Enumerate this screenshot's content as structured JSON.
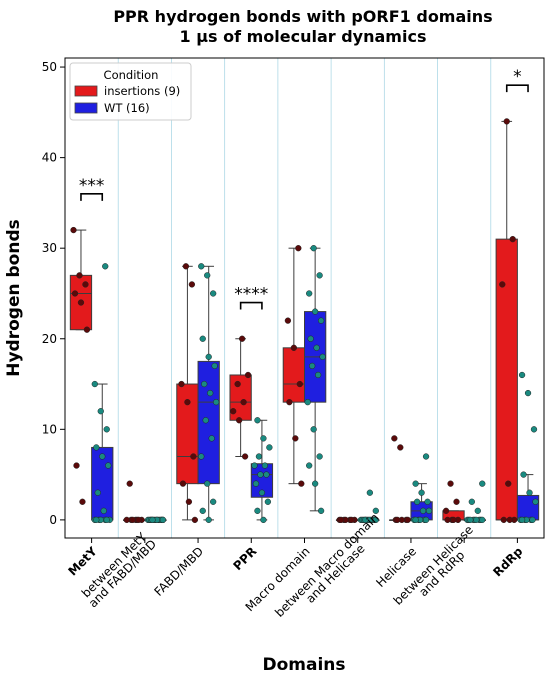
{
  "chart_data": {
    "type": "box",
    "title": "PPR hydrogen bonds with pORF1 domains",
    "subtitle": "1 µs of molecular dynamics",
    "xlabel": "Domains",
    "ylabel": "Hydrogen bonds",
    "ylim": [
      -2,
      51
    ],
    "yticks": [
      0,
      10,
      20,
      30,
      40,
      50
    ],
    "grid": "vertical lines between categories",
    "legend": {
      "title": "Condition",
      "position": "top-left",
      "entries": [
        "insertions (9)",
        "WT (16)"
      ]
    },
    "categories": [
      {
        "label": "MetY",
        "bold": true
      },
      {
        "label": "between MetY and FABD/MBD",
        "bold": false
      },
      {
        "label": "FABD/MBD",
        "bold": false
      },
      {
        "label": "PPR",
        "bold": true
      },
      {
        "label": "Macro  domain",
        "bold": false
      },
      {
        "label": "between Macro domain and Helicase",
        "bold": false
      },
      {
        "label": "Helicase",
        "bold": false
      },
      {
        "label": "between Helicase and RdRp",
        "bold": false
      },
      {
        "label": "RdRp",
        "bold": true
      }
    ],
    "series": [
      {
        "name": "insertions (9)",
        "color": "#e31a1c",
        "point_color": "#5a0a0a",
        "boxes": [
          {
            "min": 21,
            "q1": 21,
            "median": 25,
            "q3": 27,
            "max": 32,
            "points": [
              32,
              27,
              26,
              25,
              24,
              21,
              6,
              2
            ]
          },
          {
            "min": 0,
            "q1": 0,
            "median": 0,
            "q3": 0,
            "max": 0,
            "points": [
              4,
              0,
              0,
              0,
              0,
              0,
              0,
              0
            ]
          },
          {
            "min": 0,
            "q1": 4,
            "median": 7,
            "q3": 15,
            "max": 28,
            "points": [
              28,
              26,
              15,
              13,
              7,
              4,
              2,
              0
            ]
          },
          {
            "min": 7,
            "q1": 11,
            "median": 13,
            "q3": 16,
            "max": 20,
            "points": [
              20,
              16,
              15,
              13,
              12,
              11,
              7
            ]
          },
          {
            "min": 4,
            "q1": 13,
            "median": 15,
            "q3": 19,
            "max": 30,
            "points": [
              30,
              22,
              19,
              15,
              13,
              9,
              4
            ]
          },
          {
            "min": 0,
            "q1": 0,
            "median": 0,
            "q3": 0,
            "max": 0,
            "points": [
              0,
              0,
              0,
              0,
              0,
              0,
              0
            ]
          },
          {
            "min": 0,
            "q1": 0,
            "median": 0,
            "q3": 0,
            "max": 0,
            "points": [
              9,
              8,
              0,
              0,
              0,
              0,
              0
            ]
          },
          {
            "min": 0,
            "q1": 0,
            "median": 0,
            "q3": 1,
            "max": 1,
            "points": [
              4,
              2,
              1,
              0,
              0,
              0,
              0
            ]
          },
          {
            "min": 0,
            "q1": 0,
            "median": 0,
            "q3": 31,
            "max": 44,
            "points": [
              44,
              31,
              26,
              4,
              0,
              0,
              0
            ]
          }
        ]
      },
      {
        "name": "WT (16)",
        "color": "#1f1fe0",
        "point_color": "#1a8a80",
        "boxes": [
          {
            "min": 0,
            "q1": 0,
            "median": 0,
            "q3": 8,
            "max": 15,
            "points": [
              28,
              15,
              12,
              10,
              8,
              7,
              6,
              3,
              1,
              0,
              0,
              0,
              0,
              0,
              0,
              0
            ]
          },
          {
            "min": 0,
            "q1": 0,
            "median": 0,
            "q3": 0,
            "max": 0,
            "points": [
              0,
              0,
              0,
              0,
              0,
              0,
              0,
              0,
              0,
              0,
              0,
              0,
              0,
              0,
              0,
              0
            ]
          },
          {
            "min": 0,
            "q1": 4,
            "median": 13,
            "q3": 17.5,
            "max": 28,
            "points": [
              28,
              27,
              25,
              20,
              18,
              17,
              15,
              14,
              13,
              11,
              9,
              7,
              4,
              2,
              1,
              0
            ]
          },
          {
            "min": 0,
            "q1": 2.5,
            "median": 5,
            "q3": 6.2,
            "max": 11,
            "points": [
              11,
              9,
              8,
              7,
              6,
              6,
              5,
              5,
              4,
              3,
              2,
              1,
              0
            ]
          },
          {
            "min": 1,
            "q1": 13,
            "median": 18,
            "q3": 23,
            "max": 30,
            "points": [
              30,
              27,
              25,
              23,
              22,
              20,
              19,
              18,
              17,
              16,
              13,
              10,
              7,
              6,
              4,
              1
            ]
          },
          {
            "min": 0,
            "q1": 0,
            "median": 0,
            "q3": 0,
            "max": 0,
            "points": [
              3,
              1,
              0,
              0,
              0,
              0,
              0,
              0,
              0,
              0,
              0,
              0,
              0,
              0
            ]
          },
          {
            "min": 0,
            "q1": 0,
            "median": 1,
            "q3": 2,
            "max": 4,
            "points": [
              7,
              4,
              3,
              2,
              2,
              1,
              1,
              0,
              0,
              0,
              0,
              0,
              0
            ]
          },
          {
            "min": 0,
            "q1": 0,
            "median": 0,
            "q3": 0,
            "max": 0,
            "points": [
              4,
              2,
              1,
              0,
              0,
              0,
              0,
              0,
              0,
              0,
              0,
              0
            ]
          },
          {
            "min": 0,
            "q1": 0,
            "median": 0,
            "q3": 2.7,
            "max": 5,
            "points": [
              16,
              14,
              10,
              5,
              3,
              2,
              0,
              0,
              0,
              0,
              0,
              0
            ]
          }
        ]
      }
    ],
    "annotations": [
      {
        "category": 0,
        "text": "***",
        "y": 36
      },
      {
        "category": 3,
        "text": "****",
        "y": 24
      },
      {
        "category": 8,
        "text": "*",
        "y": 48
      }
    ]
  }
}
